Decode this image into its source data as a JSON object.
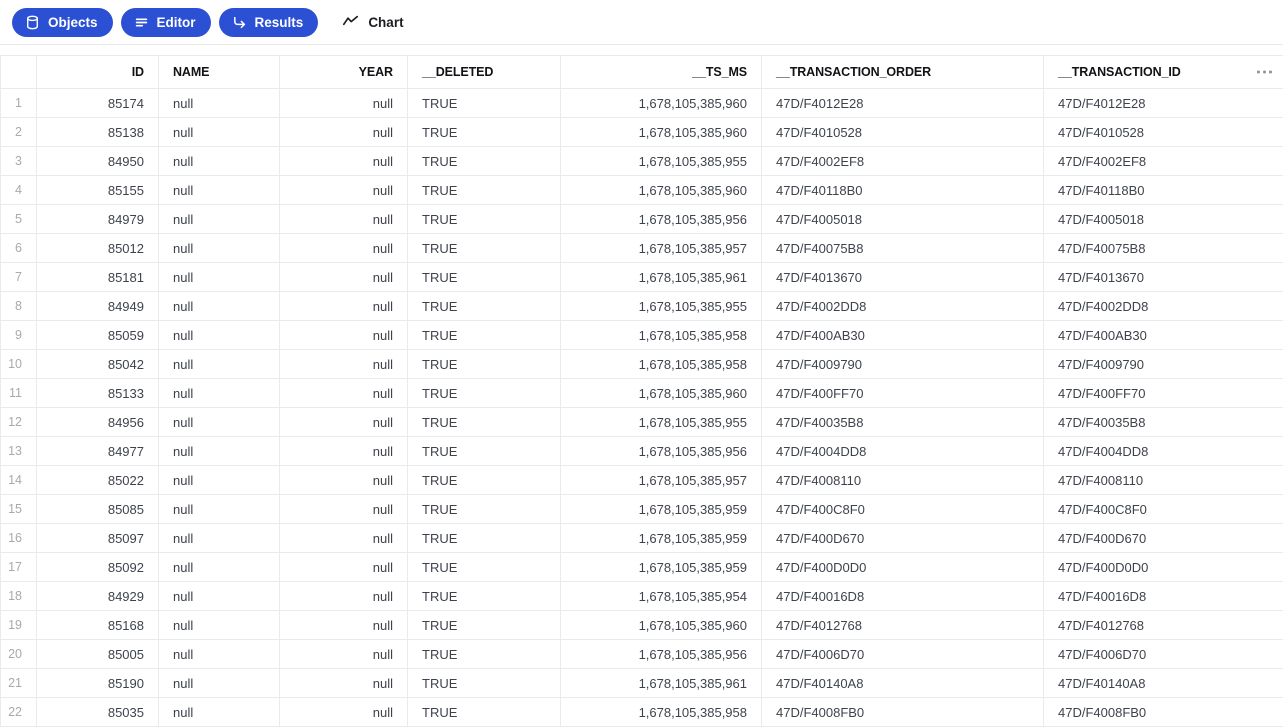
{
  "colors": {
    "accent": "#2c50d4",
    "grid": "#e9eaec",
    "row_number": "#a6aab1",
    "cell_text": "#3e434b"
  },
  "toolbar": {
    "buttons": [
      {
        "label": "Objects",
        "icon": "database-icon"
      },
      {
        "label": "Editor",
        "icon": "lines-icon"
      },
      {
        "label": "Results",
        "icon": "corner-down-right-icon"
      }
    ],
    "chart_label": "Chart",
    "chart_icon": "trend-line-icon"
  },
  "table": {
    "columns": [
      {
        "key": "id",
        "label": "ID",
        "align": "right"
      },
      {
        "key": "name",
        "label": "NAME",
        "align": "left"
      },
      {
        "key": "year",
        "label": "YEAR",
        "align": "right"
      },
      {
        "key": "deleted",
        "label": "__DELETED",
        "align": "left"
      },
      {
        "key": "ts_ms",
        "label": "__TS_MS",
        "align": "right"
      },
      {
        "key": "t_order",
        "label": "__TRANSACTION_ORDER",
        "align": "left"
      },
      {
        "key": "t_id",
        "label": "__TRANSACTION_ID",
        "align": "left"
      }
    ],
    "header_menu_icon": "ellipsis-icon",
    "rows": [
      {
        "num": 1,
        "id": "85174",
        "name": "null",
        "year": "null",
        "deleted": "TRUE",
        "ts_ms": "1,678,105,385,960",
        "t_order": "47D/F4012E28",
        "t_id": "47D/F4012E28"
      },
      {
        "num": 2,
        "id": "85138",
        "name": "null",
        "year": "null",
        "deleted": "TRUE",
        "ts_ms": "1,678,105,385,960",
        "t_order": "47D/F4010528",
        "t_id": "47D/F4010528"
      },
      {
        "num": 3,
        "id": "84950",
        "name": "null",
        "year": "null",
        "deleted": "TRUE",
        "ts_ms": "1,678,105,385,955",
        "t_order": "47D/F4002EF8",
        "t_id": "47D/F4002EF8"
      },
      {
        "num": 4,
        "id": "85155",
        "name": "null",
        "year": "null",
        "deleted": "TRUE",
        "ts_ms": "1,678,105,385,960",
        "t_order": "47D/F40118B0",
        "t_id": "47D/F40118B0"
      },
      {
        "num": 5,
        "id": "84979",
        "name": "null",
        "year": "null",
        "deleted": "TRUE",
        "ts_ms": "1,678,105,385,956",
        "t_order": "47D/F4005018",
        "t_id": "47D/F4005018"
      },
      {
        "num": 6,
        "id": "85012",
        "name": "null",
        "year": "null",
        "deleted": "TRUE",
        "ts_ms": "1,678,105,385,957",
        "t_order": "47D/F40075B8",
        "t_id": "47D/F40075B8"
      },
      {
        "num": 7,
        "id": "85181",
        "name": "null",
        "year": "null",
        "deleted": "TRUE",
        "ts_ms": "1,678,105,385,961",
        "t_order": "47D/F4013670",
        "t_id": "47D/F4013670"
      },
      {
        "num": 8,
        "id": "84949",
        "name": "null",
        "year": "null",
        "deleted": "TRUE",
        "ts_ms": "1,678,105,385,955",
        "t_order": "47D/F4002DD8",
        "t_id": "47D/F4002DD8"
      },
      {
        "num": 9,
        "id": "85059",
        "name": "null",
        "year": "null",
        "deleted": "TRUE",
        "ts_ms": "1,678,105,385,958",
        "t_order": "47D/F400AB30",
        "t_id": "47D/F400AB30"
      },
      {
        "num": 10,
        "id": "85042",
        "name": "null",
        "year": "null",
        "deleted": "TRUE",
        "ts_ms": "1,678,105,385,958",
        "t_order": "47D/F4009790",
        "t_id": "47D/F4009790"
      },
      {
        "num": 11,
        "id": "85133",
        "name": "null",
        "year": "null",
        "deleted": "TRUE",
        "ts_ms": "1,678,105,385,960",
        "t_order": "47D/F400FF70",
        "t_id": "47D/F400FF70"
      },
      {
        "num": 12,
        "id": "84956",
        "name": "null",
        "year": "null",
        "deleted": "TRUE",
        "ts_ms": "1,678,105,385,955",
        "t_order": "47D/F40035B8",
        "t_id": "47D/F40035B8"
      },
      {
        "num": 13,
        "id": "84977",
        "name": "null",
        "year": "null",
        "deleted": "TRUE",
        "ts_ms": "1,678,105,385,956",
        "t_order": "47D/F4004DD8",
        "t_id": "47D/F4004DD8"
      },
      {
        "num": 14,
        "id": "85022",
        "name": "null",
        "year": "null",
        "deleted": "TRUE",
        "ts_ms": "1,678,105,385,957",
        "t_order": "47D/F4008110",
        "t_id": "47D/F4008110"
      },
      {
        "num": 15,
        "id": "85085",
        "name": "null",
        "year": "null",
        "deleted": "TRUE",
        "ts_ms": "1,678,105,385,959",
        "t_order": "47D/F400C8F0",
        "t_id": "47D/F400C8F0"
      },
      {
        "num": 16,
        "id": "85097",
        "name": "null",
        "year": "null",
        "deleted": "TRUE",
        "ts_ms": "1,678,105,385,959",
        "t_order": "47D/F400D670",
        "t_id": "47D/F400D670"
      },
      {
        "num": 17,
        "id": "85092",
        "name": "null",
        "year": "null",
        "deleted": "TRUE",
        "ts_ms": "1,678,105,385,959",
        "t_order": "47D/F400D0D0",
        "t_id": "47D/F400D0D0"
      },
      {
        "num": 18,
        "id": "84929",
        "name": "null",
        "year": "null",
        "deleted": "TRUE",
        "ts_ms": "1,678,105,385,954",
        "t_order": "47D/F40016D8",
        "t_id": "47D/F40016D8"
      },
      {
        "num": 19,
        "id": "85168",
        "name": "null",
        "year": "null",
        "deleted": "TRUE",
        "ts_ms": "1,678,105,385,960",
        "t_order": "47D/F4012768",
        "t_id": "47D/F4012768"
      },
      {
        "num": 20,
        "id": "85005",
        "name": "null",
        "year": "null",
        "deleted": "TRUE",
        "ts_ms": "1,678,105,385,956",
        "t_order": "47D/F4006D70",
        "t_id": "47D/F4006D70"
      },
      {
        "num": 21,
        "id": "85190",
        "name": "null",
        "year": "null",
        "deleted": "TRUE",
        "ts_ms": "1,678,105,385,961",
        "t_order": "47D/F40140A8",
        "t_id": "47D/F40140A8"
      },
      {
        "num": 22,
        "id": "85035",
        "name": "null",
        "year": "null",
        "deleted": "TRUE",
        "ts_ms": "1,678,105,385,958",
        "t_order": "47D/F4008FB0",
        "t_id": "47D/F4008FB0"
      }
    ]
  }
}
